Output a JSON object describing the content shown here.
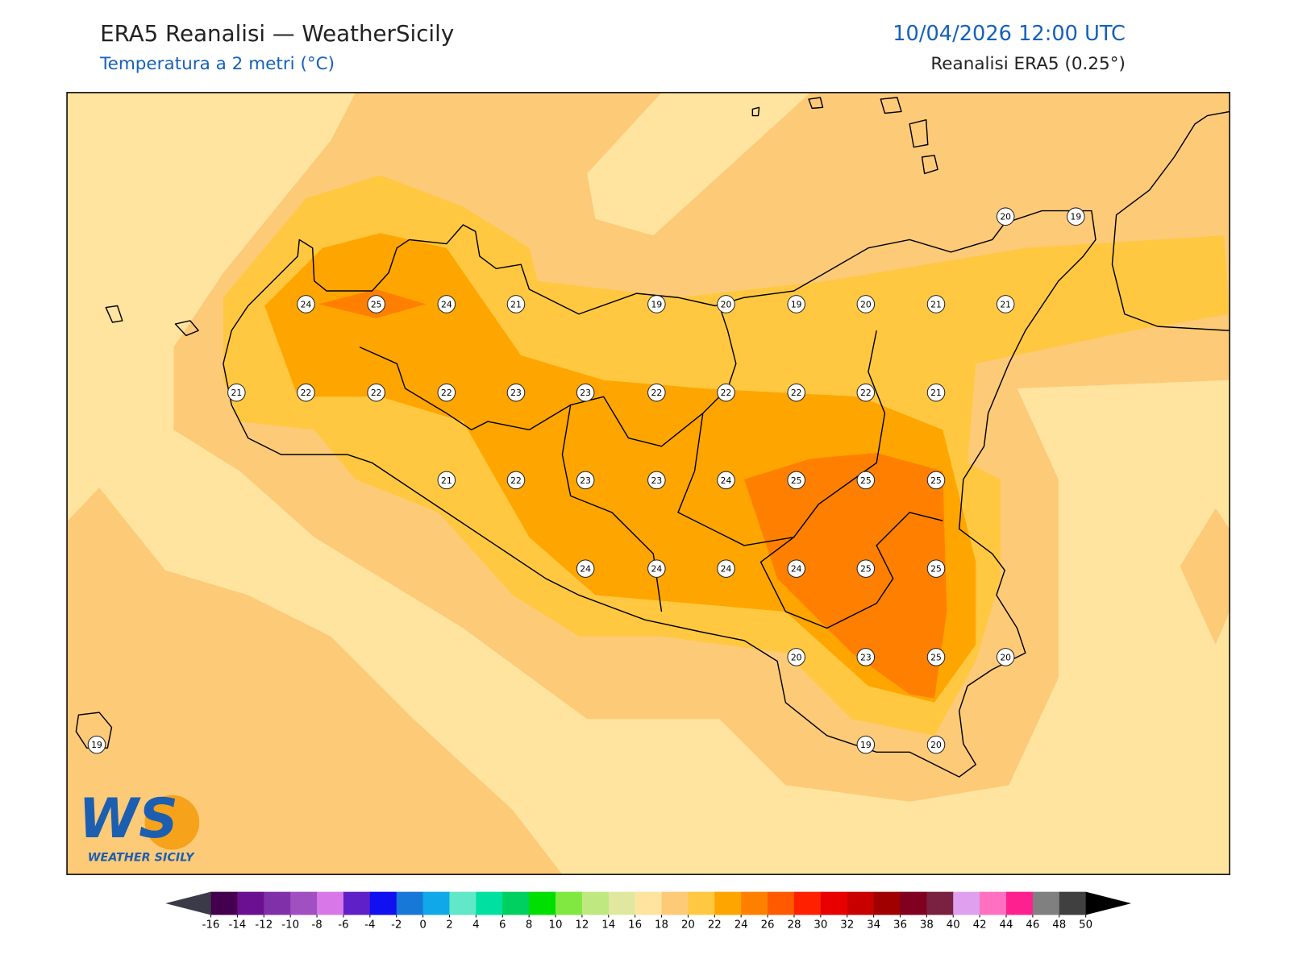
{
  "header": {
    "title": "ERA5 Reanalisi — WeatherSicily",
    "subtitle": "Temperatura a 2 metri (°C)",
    "datetime": "10/04/2026 12:00 UTC",
    "source": "Reanalisi ERA5 (0.25°)"
  },
  "stations": [
    20,
    19,
    24,
    25,
    24,
    21,
    19,
    20,
    19,
    20,
    21,
    21,
    21,
    22,
    22,
    22,
    23,
    23,
    22,
    22,
    22,
    22,
    21,
    21,
    22,
    23,
    23,
    24,
    25,
    25,
    25,
    24,
    24,
    24,
    24,
    25,
    25,
    20,
    23,
    25,
    20,
    19,
    19,
    20
  ],
  "logo": {
    "mark": "WS",
    "name": "WEATHER SICILY"
  },
  "colorbar": {
    "ticks": [
      -16,
      -14,
      -12,
      -10,
      -8,
      -6,
      -4,
      -2,
      0,
      2,
      4,
      6,
      8,
      10,
      12,
      14,
      16,
      18,
      20,
      22,
      24,
      26,
      28,
      30,
      32,
      34,
      36,
      38,
      40,
      42,
      44,
      46,
      48,
      50
    ],
    "colors": [
      "#44004f",
      "#6a1090",
      "#8030a8",
      "#a050c0",
      "#d878e8",
      "#6020c8",
      "#1010f0",
      "#1878d8",
      "#10a8e8",
      "#60e8c8",
      "#00e0a0",
      "#00d060",
      "#00e000",
      "#80e840",
      "#c0e880",
      "#e0e8a0",
      "#ffe4a0",
      "#fdca78",
      "#ffc840",
      "#ffa500",
      "#ff8000",
      "#ff5a00",
      "#ff2000",
      "#e80000",
      "#c80000",
      "#a00000",
      "#800020",
      "#7a2040",
      "#e0a0f0",
      "#ff70c0",
      "#ff2090",
      "#808080",
      "#404040"
    ],
    "extend_colors": [
      "#3a3a48",
      "#000000"
    ]
  }
}
